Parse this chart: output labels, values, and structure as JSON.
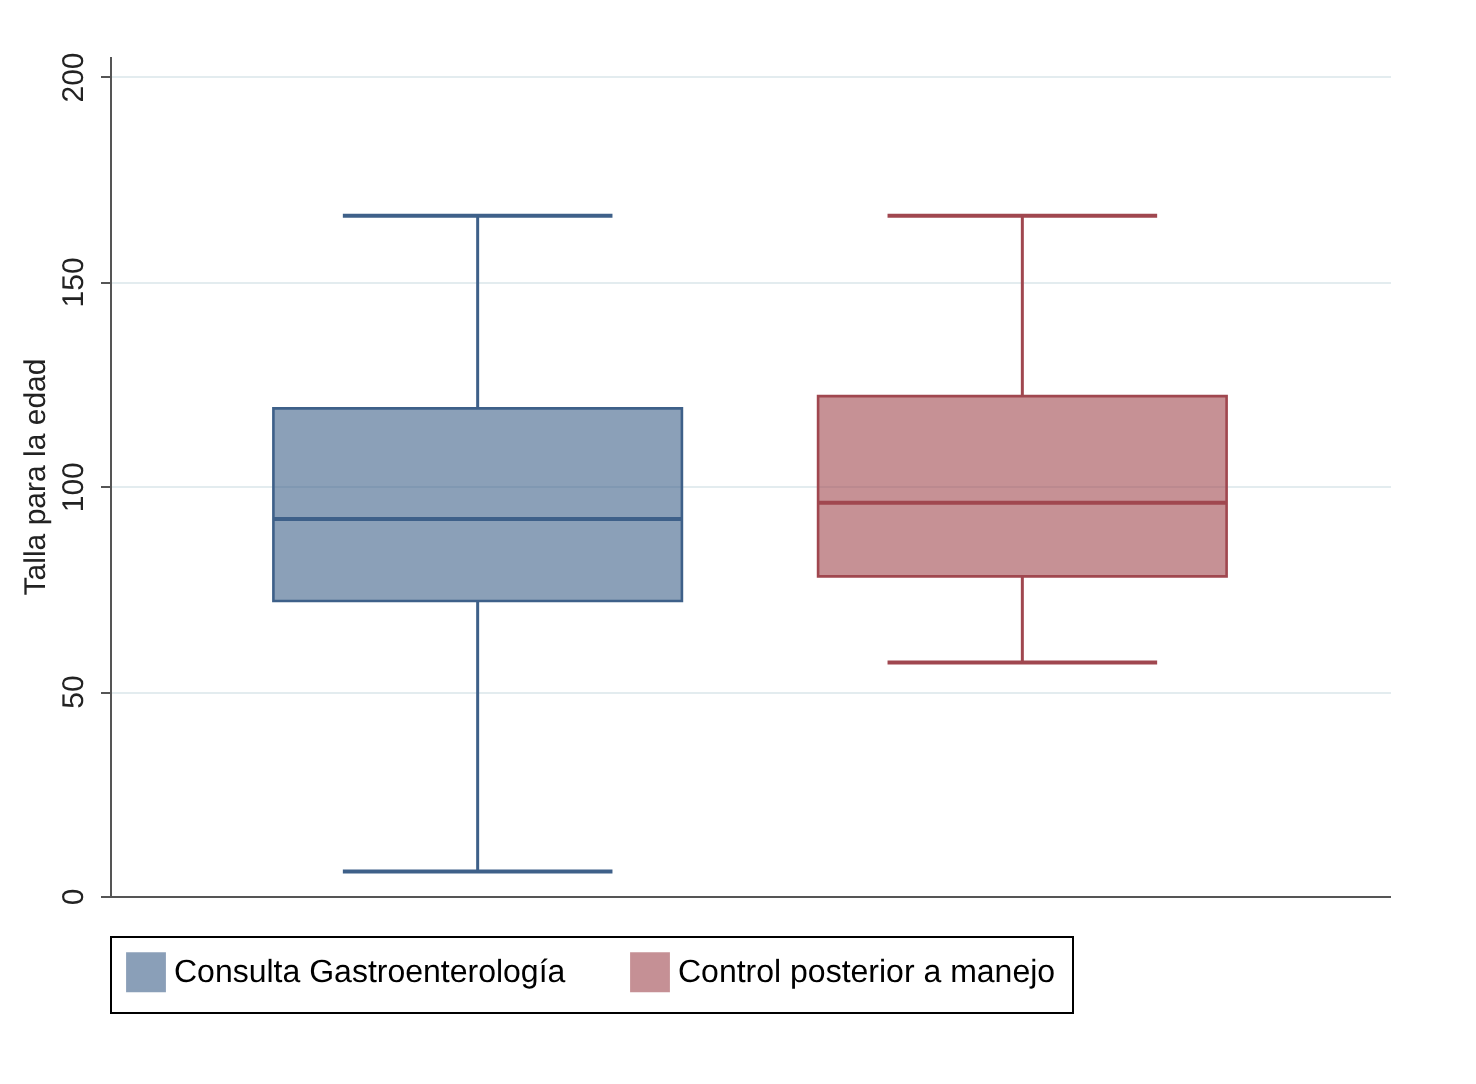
{
  "chart_data": {
    "type": "box",
    "ylabel": "Talla para la edad",
    "categories": [
      null
    ],
    "ylim": [
      0,
      205
    ],
    "yticks": [
      0,
      50,
      100,
      150,
      200
    ],
    "grid": "y",
    "legend": "bottom",
    "series": [
      {
        "name": "Consulta Gastroenterología",
        "color": "#3e6089",
        "boxes": [
          {
            "low": 6,
            "q1": 72,
            "median": 92,
            "q3": 119,
            "high": 166
          }
        ]
      },
      {
        "name": "Control posterior a manejo",
        "color": "#a0474f",
        "boxes": [
          {
            "low": 57,
            "q1": 78,
            "median": 96,
            "q3": 122,
            "high": 166
          }
        ]
      }
    ]
  }
}
